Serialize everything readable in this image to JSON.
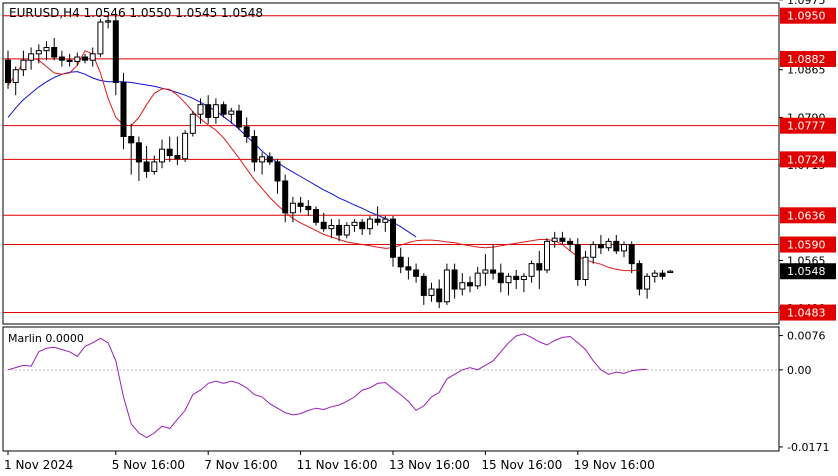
{
  "chart_data": {
    "type": "candlestick",
    "symbol_header": "EURUSD,H4  1.0546 1.0550 1.0545 1.0548",
    "ylim": [
      1.0465,
      1.097
    ],
    "price_ticks": [
      "1.0975",
      "1.0865",
      "1.0790",
      "1.0715",
      "1.0565",
      "1.0490"
    ],
    "tick_values": [
      1.0975,
      1.0865,
      1.079,
      1.0715,
      1.0565,
      1.049
    ],
    "x_labels": [
      "1 Nov 2024",
      "5 Nov 16:00",
      "7 Nov 16:00",
      "11 Nov 16:00",
      "13 Nov 16:00",
      "15 Nov 16:00",
      "19 Nov 16:00"
    ],
    "x_label_index": [
      0,
      14,
      26,
      38,
      50,
      62,
      74
    ],
    "levels": [
      {
        "value": 1.095,
        "label": "1.0950"
      },
      {
        "value": 1.0882,
        "label": "1.0882"
      },
      {
        "value": 1.0777,
        "label": "1.0777"
      },
      {
        "value": 1.0724,
        "label": "1.0724"
      },
      {
        "value": 1.0636,
        "label": "1.0636"
      },
      {
        "value": 1.059,
        "label": "1.0590"
      },
      {
        "value": 1.0483,
        "label": "1.0483"
      }
    ],
    "current_price": {
      "value": 1.0548,
      "label": "1.0548"
    },
    "candles": [
      [
        1.088,
        1.0895,
        1.0835,
        1.0845
      ],
      [
        1.0845,
        1.087,
        1.0825,
        1.0865
      ],
      [
        1.0865,
        1.0895,
        1.0855,
        1.088
      ],
      [
        1.088,
        1.09,
        1.0865,
        1.089
      ],
      [
        1.089,
        1.0905,
        1.0875,
        1.0895
      ],
      [
        1.0895,
        1.091,
        1.088,
        1.09
      ],
      [
        1.09,
        1.0915,
        1.088,
        1.0885
      ],
      [
        1.0885,
        1.0895,
        1.087,
        1.088
      ],
      [
        1.088,
        1.089,
        1.087,
        1.0878
      ],
      [
        1.0878,
        1.0892,
        1.0872,
        1.0885
      ],
      [
        1.0885,
        1.089,
        1.0875,
        1.088
      ],
      [
        1.088,
        1.09,
        1.087,
        1.089
      ],
      [
        1.089,
        1.0945,
        1.0885,
        1.094
      ],
      [
        1.094,
        1.095,
        1.093,
        1.0942
      ],
      [
        1.0942,
        1.095,
        1.0825,
        1.0845
      ],
      [
        1.0845,
        1.086,
        1.074,
        1.076
      ],
      [
        1.076,
        1.078,
        1.07,
        1.075
      ],
      [
        1.075,
        1.076,
        1.069,
        1.072
      ],
      [
        1.072,
        1.0745,
        1.0695,
        1.0705
      ],
      [
        1.0705,
        1.073,
        1.07,
        1.072
      ],
      [
        1.072,
        1.0755,
        1.071,
        1.074
      ],
      [
        1.074,
        1.076,
        1.072,
        1.073
      ],
      [
        1.073,
        1.076,
        1.0715,
        1.0725
      ],
      [
        1.0725,
        1.077,
        1.072,
        1.0765
      ],
      [
        1.0765,
        1.08,
        1.076,
        1.0795
      ],
      [
        1.0795,
        1.082,
        1.078,
        1.081
      ],
      [
        1.081,
        1.0825,
        1.078,
        1.079
      ],
      [
        1.079,
        1.082,
        1.078,
        1.081
      ],
      [
        1.081,
        1.0815,
        1.079,
        1.0795
      ],
      [
        1.0795,
        1.0805,
        1.078,
        1.08
      ],
      [
        1.08,
        1.081,
        1.077,
        1.0775
      ],
      [
        1.0775,
        1.079,
        1.075,
        1.076
      ],
      [
        1.076,
        1.077,
        1.0705,
        1.072
      ],
      [
        1.072,
        1.0735,
        1.07,
        1.0728
      ],
      [
        1.0728,
        1.0735,
        1.0715,
        1.072
      ],
      [
        1.072,
        1.0725,
        1.067,
        1.069
      ],
      [
        1.069,
        1.07,
        1.0625,
        1.064
      ],
      [
        1.064,
        1.0665,
        1.0625,
        1.0655
      ],
      [
        1.0655,
        1.0665,
        1.064,
        1.065
      ],
      [
        1.065,
        1.066,
        1.0635,
        1.0645
      ],
      [
        1.0645,
        1.065,
        1.062,
        1.0625
      ],
      [
        1.0625,
        1.064,
        1.061,
        1.0615
      ],
      [
        1.0615,
        1.063,
        1.06,
        1.062
      ],
      [
        1.062,
        1.063,
        1.0595,
        1.0605
      ],
      [
        1.0605,
        1.0625,
        1.06,
        1.062
      ],
      [
        1.062,
        1.063,
        1.061,
        1.0625
      ],
      [
        1.0625,
        1.063,
        1.0605,
        1.0615
      ],
      [
        1.0615,
        1.0635,
        1.0605,
        1.063
      ],
      [
        1.063,
        1.065,
        1.062,
        1.0625
      ],
      [
        1.0625,
        1.0635,
        1.061,
        1.063
      ],
      [
        1.063,
        1.0635,
        1.0555,
        1.057
      ],
      [
        1.057,
        1.0585,
        1.0545,
        1.0555
      ],
      [
        1.0555,
        1.057,
        1.0535,
        1.055
      ],
      [
        1.055,
        1.056,
        1.053,
        1.054
      ],
      [
        1.054,
        1.0545,
        1.0495,
        1.051
      ],
      [
        1.051,
        1.053,
        1.05,
        1.052
      ],
      [
        1.052,
        1.0535,
        1.049,
        1.05
      ],
      [
        1.05,
        1.056,
        1.0495,
        1.055
      ],
      [
        1.055,
        1.056,
        1.0505,
        1.052
      ],
      [
        1.052,
        1.0545,
        1.051,
        1.053
      ],
      [
        1.053,
        1.054,
        1.0515,
        1.0525
      ],
      [
        1.0525,
        1.0555,
        1.052,
        1.0545
      ],
      [
        1.0545,
        1.0575,
        1.0525,
        1.055
      ],
      [
        1.055,
        1.059,
        1.0535,
        1.0545
      ],
      [
        1.0545,
        1.056,
        1.0515,
        1.053
      ],
      [
        1.053,
        1.0545,
        1.051,
        1.054
      ],
      [
        1.054,
        1.055,
        1.052,
        1.0535
      ],
      [
        1.0535,
        1.0545,
        1.0515,
        1.054
      ],
      [
        1.054,
        1.0565,
        1.053,
        1.056
      ],
      [
        1.056,
        1.058,
        1.052,
        1.055
      ],
      [
        1.055,
        1.06,
        1.0545,
        1.0595
      ],
      [
        1.0595,
        1.061,
        1.0585,
        1.06
      ],
      [
        1.06,
        1.061,
        1.059,
        1.0595
      ],
      [
        1.0595,
        1.06,
        1.058,
        1.059
      ],
      [
        1.059,
        1.06,
        1.0525,
        1.0535
      ],
      [
        1.0535,
        1.058,
        1.0525,
        1.057
      ],
      [
        1.057,
        1.0595,
        1.056,
        1.059
      ],
      [
        1.059,
        1.0605,
        1.0575,
        1.0585
      ],
      [
        1.0585,
        1.06,
        1.058,
        1.0595
      ],
      [
        1.0595,
        1.0605,
        1.0575,
        1.058
      ],
      [
        1.058,
        1.0595,
        1.057,
        1.059
      ],
      [
        1.059,
        1.0595,
        1.0545,
        1.056
      ],
      [
        1.056,
        1.0565,
        1.051,
        1.052
      ],
      [
        1.052,
        1.0545,
        1.0505,
        1.054
      ],
      [
        1.054,
        1.055,
        1.053,
        1.0545
      ],
      [
        1.0545,
        1.055,
        1.0535,
        1.054
      ],
      [
        1.0546,
        1.055,
        1.0545,
        1.0548
      ]
    ],
    "ma_red": [
      1.084,
      1.0858,
      1.0876,
      1.0884,
      1.088,
      1.087,
      1.086,
      1.0858,
      1.086,
      1.0872,
      1.0895,
      1.089,
      1.086,
      1.082,
      1.079,
      1.0778,
      1.0777,
      1.079,
      1.081,
      1.0828,
      1.0835,
      1.0834,
      1.0825,
      1.0813,
      1.0799,
      1.0788,
      1.0778,
      1.077,
      1.0758,
      1.0742,
      1.0726,
      1.0709,
      1.0692,
      1.0678,
      1.0664,
      1.0652,
      1.0641,
      1.0631,
      1.0624,
      1.0618,
      1.0612,
      1.0606,
      1.0602,
      1.0598,
      1.0594,
      1.0592,
      1.059,
      1.0588,
      1.0586,
      1.0584,
      1.0585,
      1.0589,
      1.0593,
      1.0596,
      1.0597,
      1.0597,
      1.0596,
      1.0594,
      1.0593,
      1.059,
      1.0588,
      1.0586,
      1.0585,
      1.0586,
      1.0588,
      1.059,
      1.0592,
      1.0594,
      1.0596,
      1.0598,
      1.0598,
      1.0596,
      1.059,
      1.058,
      1.0571,
      1.0566,
      1.0562,
      1.0559,
      1.0554,
      1.0551,
      1.0549,
      1.0549,
      1.055
    ],
    "ma_red_start": 0,
    "ma_blue": [
      1.079,
      1.0805,
      1.0818,
      1.0828,
      1.0838,
      1.0846,
      1.0853,
      1.0858,
      1.0861,
      1.0862,
      1.0858,
      1.0852,
      1.0848,
      1.0846,
      1.0846,
      1.0846,
      1.0845,
      1.0843,
      1.0841,
      1.0839,
      1.0836,
      1.0833,
      1.0829,
      1.0825,
      1.082,
      1.0814,
      1.0807,
      1.08,
      1.0791,
      1.0782,
      1.0772,
      1.076,
      1.0749,
      1.0737,
      1.0727,
      1.0719,
      1.0711,
      1.0704,
      1.0697,
      1.069,
      1.0683,
      1.0676,
      1.067,
      1.0663,
      1.0658,
      1.0652,
      1.0647,
      1.0641,
      1.0636,
      1.0631,
      1.0625,
      1.0618,
      1.061,
      1.0602
    ],
    "ma_blue_start": 0,
    "indicator": {
      "label": "Marlin 0.0000",
      "ylim": [
        -0.018,
        0.0095
      ],
      "ticks": [
        "0.0076",
        "0.00",
        "-0.0171"
      ],
      "tick_values": [
        0.0076,
        0.0,
        -0.0171
      ],
      "values": [
        0.0,
        0.0005,
        0.001,
        0.0008,
        0.004,
        0.0048,
        0.005,
        0.0045,
        0.004,
        0.003,
        0.0052,
        0.006,
        0.007,
        0.006,
        0.002,
        -0.006,
        -0.012,
        -0.014,
        -0.015,
        -0.014,
        -0.0125,
        -0.013,
        -0.011,
        -0.009,
        -0.0055,
        -0.0045,
        -0.003,
        -0.0025,
        -0.003,
        -0.0025,
        -0.003,
        -0.004,
        -0.0055,
        -0.006,
        -0.0075,
        -0.0085,
        -0.0095,
        -0.01,
        -0.0097,
        -0.009,
        -0.0085,
        -0.0088,
        -0.0082,
        -0.0078,
        -0.007,
        -0.006,
        -0.0045,
        -0.004,
        -0.003,
        -0.0028,
        -0.0042,
        -0.0055,
        -0.007,
        -0.009,
        -0.008,
        -0.006,
        -0.005,
        -0.002,
        -0.001,
        0.0,
        0.0005,
        0.0,
        0.001,
        0.002,
        0.004,
        0.006,
        0.0075,
        0.008,
        0.0072,
        0.0062,
        0.0055,
        0.0065,
        0.0072,
        0.0074,
        0.006,
        0.0045,
        0.002,
        0.0,
        -0.001,
        -0.0005,
        -0.0008,
        -0.0002,
        0.0,
        0.0001
      ]
    }
  }
}
